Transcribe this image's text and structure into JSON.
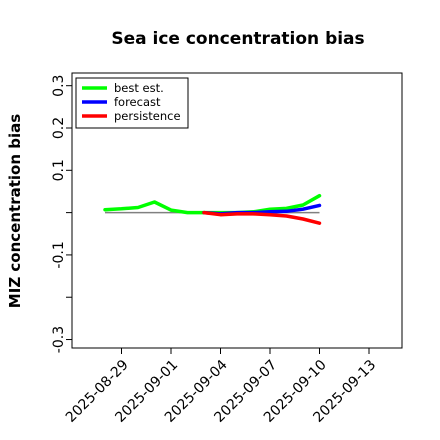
{
  "chart_data": {
    "type": "line",
    "title": "Sea ice concentration bias",
    "xlabel": "",
    "ylabel": "MIZ concentration bias",
    "xlim": [
      "2025-08-26",
      "2025-09-15"
    ],
    "ylim": [
      -0.32,
      0.33
    ],
    "yticks": [
      -0.3,
      -0.2,
      -0.1,
      0.0,
      0.1,
      0.2,
      0.3
    ],
    "ytick_labels": [
      "-0.3",
      "",
      "-0.1",
      "",
      "0.1",
      "0.2",
      "0.3"
    ],
    "xticks": [
      "2025-08-29",
      "2025-09-01",
      "2025-09-04",
      "2025-09-07",
      "2025-09-10",
      "2025-09-13"
    ],
    "highlight_tick": "2025-09-04",
    "highlight_color": "#228b22",
    "zero_line": true,
    "grid": false,
    "legend_position": "top-left",
    "series": [
      {
        "name": "best est.",
        "color": "#00ff00",
        "x": [
          "2025-08-28",
          "2025-08-29",
          "2025-08-30",
          "2025-08-31",
          "2025-09-01",
          "2025-09-02",
          "2025-09-03",
          "2025-09-04",
          "2025-09-05",
          "2025-09-06",
          "2025-09-07",
          "2025-09-08",
          "2025-09-09",
          "2025-09-10"
        ],
        "values": [
          0.007,
          0.009,
          0.012,
          0.025,
          0.006,
          0.0,
          0.0,
          0.0,
          0.0,
          0.002,
          0.008,
          0.01,
          0.018,
          0.04
        ]
      },
      {
        "name": "forecast",
        "color": "#0000ff",
        "x": [
          "2025-09-03",
          "2025-09-04",
          "2025-09-05",
          "2025-09-06",
          "2025-09-07",
          "2025-09-08",
          "2025-09-09",
          "2025-09-10"
        ],
        "values": [
          0.0,
          -0.003,
          0.0,
          0.0,
          0.002,
          0.003,
          0.008,
          0.017
        ]
      },
      {
        "name": "persistence",
        "color": "#ff0000",
        "x": [
          "2025-09-03",
          "2025-09-04",
          "2025-09-05",
          "2025-09-06",
          "2025-09-07",
          "2025-09-08",
          "2025-09-09",
          "2025-09-10"
        ],
        "values": [
          0.0,
          -0.005,
          -0.003,
          -0.003,
          -0.005,
          -0.008,
          -0.015,
          -0.025
        ]
      }
    ]
  }
}
